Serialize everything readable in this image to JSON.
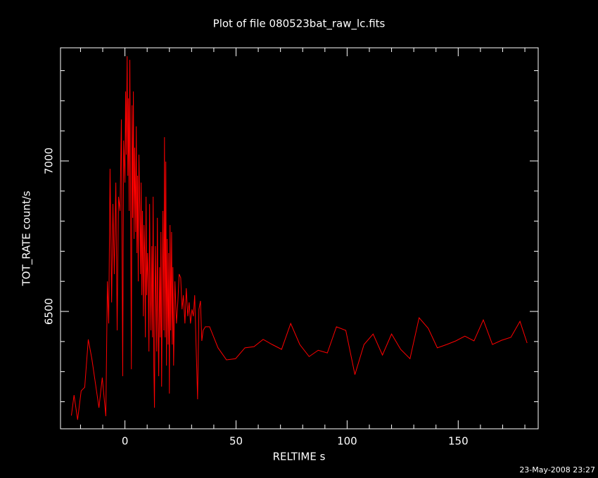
{
  "chart_data": {
    "type": "line",
    "title": "Plot of file 080523bat_raw_lc.fits",
    "x_label": "RELTIME  s",
    "y_label": "TOT_RATE  count/s",
    "footer": "23-May-2008 23:27",
    "xlim": [
      -29,
      186
    ],
    "ylim": [
      6110,
      7376
    ],
    "xticks": [
      0,
      50,
      100,
      150
    ],
    "yticks": [
      6500,
      7000
    ],
    "xminorticks": [
      -20,
      -10,
      10,
      20,
      30,
      40,
      60,
      70,
      80,
      90,
      110,
      120,
      130,
      140,
      160,
      170,
      180
    ],
    "yminorticks": [
      6200,
      6300,
      6400,
      6600,
      6700,
      6800,
      6900,
      7100,
      7200,
      7300
    ],
    "background": "#000000",
    "axis_color": "#ffffff",
    "x": [
      -24.1,
      -22.9,
      -21.3,
      -19.7,
      -18.1,
      -16.5,
      -14.9,
      -13.3,
      -11.7,
      -10.2,
      -8.6,
      -7.9,
      -7.3,
      -6.7,
      -6.0,
      -5.4,
      -4.8,
      -4.1,
      -3.5,
      -2.9,
      -2.2,
      -1.6,
      -1.0,
      -0.6,
      0.0,
      0.3,
      0.6,
      1.0,
      1.3,
      1.6,
      1.9,
      2.2,
      2.5,
      2.9,
      3.2,
      3.5,
      3.8,
      4.1,
      4.4,
      4.8,
      5.1,
      5.4,
      5.7,
      6.0,
      6.3,
      6.7,
      7.0,
      7.3,
      7.6,
      7.9,
      8.3,
      8.6,
      8.9,
      9.2,
      9.5,
      9.8,
      10.2,
      10.5,
      10.8,
      11.1,
      11.4,
      11.7,
      12.1,
      12.4,
      12.7,
      13.0,
      13.3,
      13.7,
      14.0,
      14.3,
      14.6,
      14.9,
      15.2,
      15.6,
      15.9,
      16.2,
      16.5,
      16.8,
      17.1,
      17.5,
      17.8,
      18.1,
      18.4,
      18.7,
      19.0,
      19.4,
      19.7,
      20.0,
      20.3,
      20.6,
      21.0,
      21.3,
      21.6,
      21.9,
      22.5,
      23.2,
      23.8,
      24.4,
      25.1,
      25.7,
      26.3,
      27.0,
      27.6,
      28.3,
      28.9,
      29.5,
      30.2,
      30.8,
      31.4,
      32.1,
      32.7,
      33.3,
      34.0,
      34.6,
      35.2,
      36.2,
      38.1,
      41.9,
      45.7,
      49.8,
      54.0,
      58.1,
      62.2,
      66.3,
      70.5,
      74.6,
      78.7,
      82.9,
      87.0,
      91.1,
      95.2,
      99.4,
      103.5,
      107.6,
      111.7,
      115.9,
      120.0,
      124.1,
      128.3,
      132.4,
      136.5,
      140.6,
      144.8,
      148.9,
      153.0,
      157.1,
      161.3,
      165.4,
      169.5,
      173.7,
      177.8,
      181.0
    ],
    "series": [
      {
        "name": "TOT_RATE",
        "color": "#ff0000",
        "values": [
          6154,
          6222,
          6140,
          6236,
          6248,
          6407,
          6343,
          6262,
          6180,
          6280,
          6152,
          6600,
          6460,
          6974,
          6530,
          6857,
          6624,
          6928,
          6437,
          6881,
          6834,
          7138,
          6285,
          7068,
          6928,
          7231,
          7021,
          7348,
          6951,
          7208,
          6834,
          7336,
          6928,
          6308,
          7185,
          6811,
          7231,
          6741,
          7044,
          6764,
          7115,
          6694,
          6951,
          6600,
          7021,
          6834,
          6624,
          6928,
          6554,
          6834,
          6484,
          6787,
          6694,
          6414,
          6881,
          6554,
          6694,
          6600,
          6367,
          6857,
          6577,
          6437,
          6717,
          6414,
          6881,
          6320,
          6180,
          6717,
          6554,
          6367,
          6811,
          6484,
          6285,
          6647,
          6414,
          6764,
          6250,
          6554,
          6834,
          6437,
          7079,
          6414,
          6998,
          6320,
          6741,
          6390,
          6694,
          6227,
          6787,
          6437,
          6764,
          6390,
          6647,
          6320,
          6600,
          6460,
          6530,
          6624,
          6612,
          6507,
          6554,
          6460,
          6577,
          6484,
          6530,
          6460,
          6507,
          6484,
          6554,
          6367,
          6208,
          6507,
          6535,
          6402,
          6437,
          6449,
          6449,
          6379,
          6339,
          6343,
          6379,
          6383,
          6407,
          6390,
          6374,
          6460,
          6390,
          6350,
          6371,
          6362,
          6449,
          6437,
          6290,
          6390,
          6425,
          6355,
          6425,
          6374,
          6343,
          6479,
          6444,
          6379,
          6390,
          6402,
          6418,
          6402,
          6472,
          6390,
          6404,
          6414,
          6467,
          6395
        ]
      }
    ]
  }
}
